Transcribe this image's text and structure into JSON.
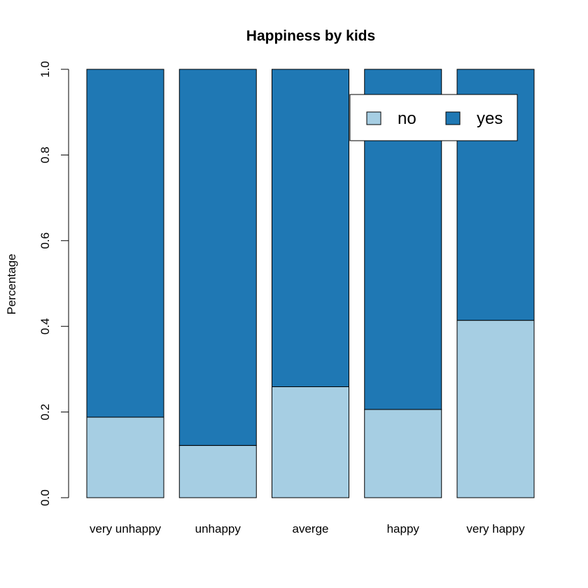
{
  "chart_data": {
    "type": "bar",
    "stacked": true,
    "title": "Happiness by kids",
    "xlabel": "",
    "ylabel": "Percentage",
    "ylim": [
      0,
      1
    ],
    "yticks": [
      "0.0",
      "0.2",
      "0.4",
      "0.6",
      "0.8",
      "1.0"
    ],
    "categories": [
      "very unhappy",
      "unhappy",
      "averge",
      "happy",
      "very happy"
    ],
    "series": [
      {
        "name": "no",
        "color": "#a6cee3",
        "values": [
          0.188,
          0.122,
          0.259,
          0.206,
          0.414
        ]
      },
      {
        "name": "yes",
        "color": "#1f78b4",
        "values": [
          0.812,
          0.878,
          0.741,
          0.794,
          0.586
        ]
      }
    ],
    "grid": false,
    "legend": {
      "position": "top-right",
      "entries": [
        "no",
        "yes"
      ]
    }
  }
}
